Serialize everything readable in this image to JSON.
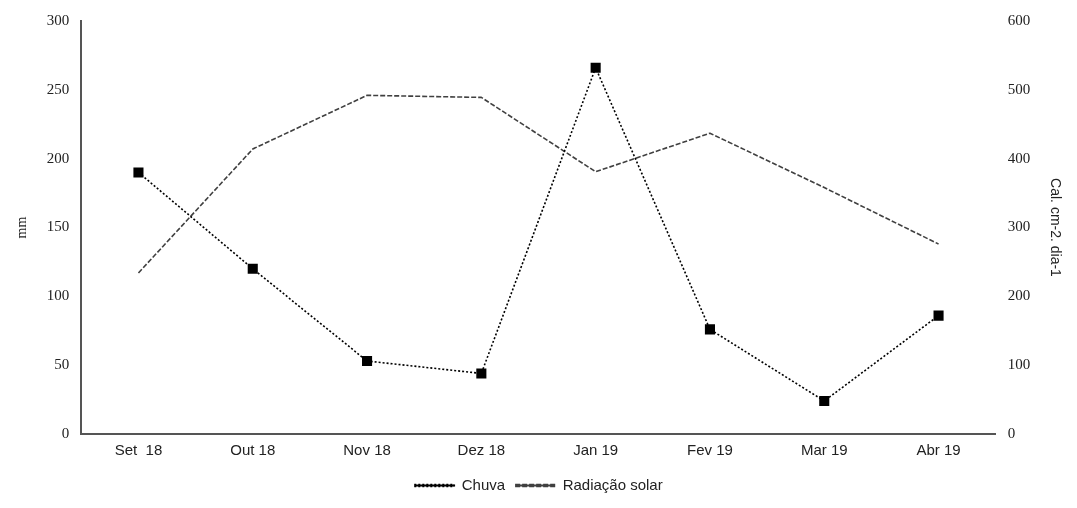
{
  "chart_data": {
    "type": "line",
    "categories": [
      "Set  18",
      "Out 18",
      "Nov 18",
      "Dez 18",
      "Jan 19",
      "Fev 19",
      "Mar 19",
      "Abr 19"
    ],
    "ylabel": "mm",
    "y2label": "Cal. cm-2. dia-1",
    "ylim": [
      0,
      300
    ],
    "yticks": [
      0,
      50,
      100,
      150,
      200,
      250,
      300
    ],
    "y2lim": [
      0,
      600
    ],
    "y2ticks": [
      0,
      100,
      200,
      300,
      400,
      500,
      600
    ],
    "legend": "bottom",
    "series": [
      {
        "name": "Chuva",
        "color": "#000000",
        "values": [
          190,
          120,
          53,
          44,
          266,
          76,
          24,
          86
        ],
        "marker": "square",
        "line_style": "dotted"
      },
      {
        "name": "Radiação solar",
        "color": "#404040",
        "values": [
          234,
          414,
          492,
          489,
          381,
          437,
          358,
          276
        ],
        "axis": "y2",
        "marker": "none",
        "line_style": "dashed"
      }
    ]
  }
}
